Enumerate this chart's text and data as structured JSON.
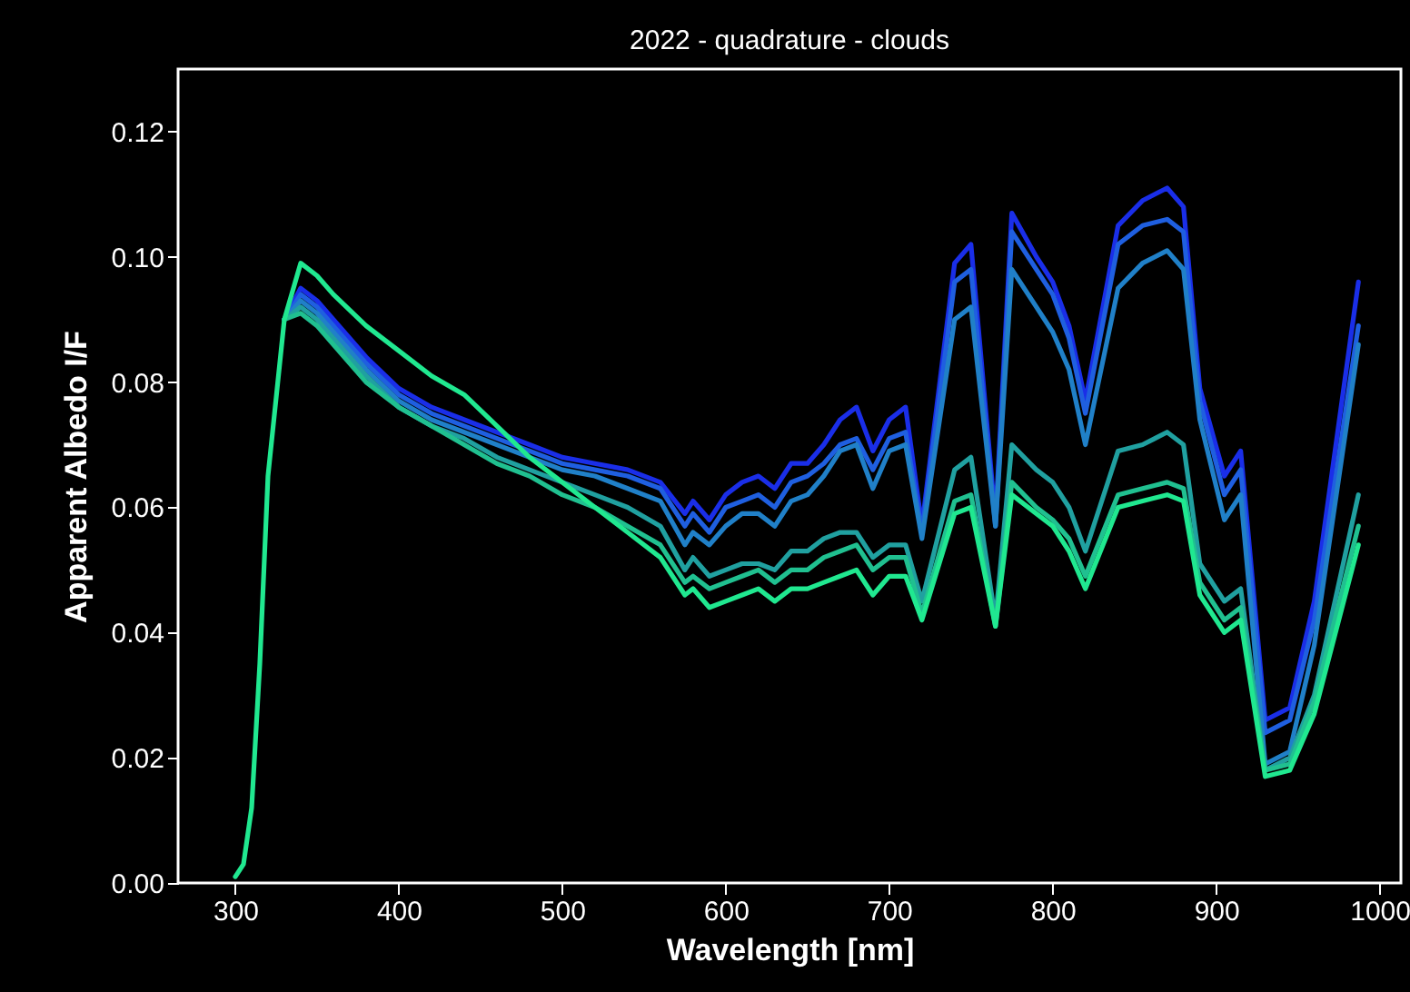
{
  "chart_data": {
    "type": "line",
    "title": "2022 - quadrature - clouds",
    "xlabel": "Wavelength [nm]",
    "ylabel": "Apparent Albedo I/F",
    "x": [
      300,
      305,
      310,
      315,
      320,
      330,
      340,
      350,
      360,
      380,
      400,
      420,
      440,
      460,
      480,
      500,
      520,
      540,
      560,
      575,
      580,
      590,
      600,
      610,
      620,
      630,
      640,
      650,
      660,
      670,
      680,
      690,
      700,
      710,
      720,
      740,
      750,
      765,
      775,
      790,
      800,
      810,
      820,
      840,
      855,
      870,
      880,
      890,
      905,
      915,
      930,
      945,
      960,
      987
    ],
    "series": [
      {
        "color": "#1a2ee8",
        "values": [
          null,
          null,
          null,
          null,
          null,
          0.09,
          0.095,
          0.093,
          0.09,
          0.084,
          0.079,
          0.076,
          0.074,
          0.072,
          0.07,
          0.068,
          0.067,
          0.066,
          0.064,
          0.059,
          0.061,
          0.058,
          0.062,
          0.064,
          0.065,
          0.063,
          0.067,
          0.067,
          0.07,
          0.074,
          0.076,
          0.069,
          0.074,
          0.076,
          0.057,
          0.099,
          0.102,
          0.058,
          0.107,
          0.1,
          0.096,
          0.089,
          0.077,
          0.105,
          0.109,
          0.111,
          0.108,
          0.079,
          0.065,
          0.069,
          0.026,
          0.028,
          0.045,
          0.096
        ]
      },
      {
        "color": "#1f5fe0",
        "values": [
          null,
          null,
          null,
          null,
          null,
          0.09,
          0.094,
          0.092,
          0.089,
          0.083,
          0.078,
          0.075,
          0.073,
          0.071,
          0.069,
          0.067,
          0.066,
          0.065,
          0.063,
          0.057,
          0.059,
          0.056,
          0.06,
          0.061,
          0.062,
          0.06,
          0.064,
          0.065,
          0.067,
          0.07,
          0.071,
          0.066,
          0.071,
          0.072,
          0.056,
          0.096,
          0.098,
          0.057,
          0.104,
          0.098,
          0.094,
          0.087,
          0.075,
          0.102,
          0.105,
          0.106,
          0.104,
          0.077,
          0.062,
          0.066,
          0.024,
          0.026,
          0.042,
          0.089
        ]
      },
      {
        "color": "#2080c8",
        "values": [
          null,
          null,
          null,
          null,
          null,
          0.09,
          0.093,
          0.091,
          0.088,
          0.082,
          0.077,
          0.074,
          0.072,
          0.07,
          0.068,
          0.066,
          0.065,
          0.063,
          0.061,
          0.054,
          0.056,
          0.054,
          0.057,
          0.059,
          0.059,
          0.057,
          0.061,
          0.062,
          0.065,
          0.069,
          0.07,
          0.063,
          0.069,
          0.07,
          0.055,
          0.09,
          0.092,
          0.057,
          0.098,
          0.092,
          0.088,
          0.082,
          0.07,
          0.095,
          0.099,
          0.101,
          0.098,
          0.074,
          0.058,
          0.062,
          0.019,
          0.021,
          0.038,
          0.086
        ]
      },
      {
        "color": "#20a0a0",
        "values": [
          null,
          null,
          null,
          null,
          null,
          0.09,
          0.092,
          0.09,
          0.087,
          0.081,
          0.076,
          0.073,
          0.071,
          0.068,
          0.066,
          0.064,
          0.062,
          0.06,
          0.057,
          0.05,
          0.052,
          0.049,
          0.05,
          0.051,
          0.051,
          0.05,
          0.053,
          0.053,
          0.055,
          0.056,
          0.056,
          0.052,
          0.054,
          0.054,
          0.045,
          0.066,
          0.068,
          0.042,
          0.07,
          0.066,
          0.064,
          0.06,
          0.053,
          0.069,
          0.07,
          0.072,
          0.07,
          0.051,
          0.045,
          0.047,
          0.018,
          0.02,
          0.03,
          0.062
        ]
      },
      {
        "color": "#20c090",
        "values": [
          null,
          null,
          null,
          null,
          null,
          0.09,
          0.091,
          0.089,
          0.086,
          0.08,
          0.076,
          0.073,
          0.07,
          0.067,
          0.065,
          0.062,
          0.06,
          0.057,
          0.054,
          0.048,
          0.049,
          0.047,
          0.048,
          0.049,
          0.05,
          0.048,
          0.05,
          0.05,
          0.052,
          0.053,
          0.054,
          0.05,
          0.052,
          0.052,
          0.043,
          0.061,
          0.062,
          0.041,
          0.064,
          0.06,
          0.058,
          0.055,
          0.049,
          0.062,
          0.063,
          0.064,
          0.063,
          0.048,
          0.042,
          0.044,
          0.018,
          0.019,
          0.029,
          0.057
        ]
      },
      {
        "color": "#20e890",
        "values": [
          0.001,
          0.003,
          0.012,
          0.035,
          0.065,
          0.09,
          0.099,
          0.097,
          0.094,
          0.089,
          0.085,
          0.081,
          0.078,
          0.073,
          0.068,
          0.064,
          0.06,
          0.056,
          0.052,
          0.046,
          0.047,
          0.044,
          0.045,
          0.046,
          0.047,
          0.045,
          0.047,
          0.047,
          0.048,
          0.049,
          0.05,
          0.046,
          0.049,
          0.049,
          0.042,
          0.059,
          0.06,
          0.041,
          0.062,
          0.059,
          0.057,
          0.053,
          0.047,
          0.06,
          0.061,
          0.062,
          0.061,
          0.046,
          0.04,
          0.042,
          0.017,
          0.018,
          0.027,
          0.054
        ]
      }
    ],
    "xlim": [
      265,
      1013
    ],
    "xticks": [
      300,
      400,
      500,
      600,
      700,
      800,
      900,
      1000
    ],
    "ylim": [
      0,
      0.13
    ],
    "yticks": [
      {
        "value": 0,
        "label": "0.00"
      },
      {
        "value": 0.02,
        "label": "0.02"
      },
      {
        "value": 0.04,
        "label": "0.04"
      },
      {
        "value": 0.06,
        "label": "0.06"
      },
      {
        "value": 0.08,
        "label": "0.08"
      },
      {
        "value": 0.1,
        "label": "0.10"
      },
      {
        "value": 0.12,
        "label": "0.12"
      }
    ],
    "grid": false,
    "legend": false,
    "marker": "none",
    "line_style": "solid"
  }
}
